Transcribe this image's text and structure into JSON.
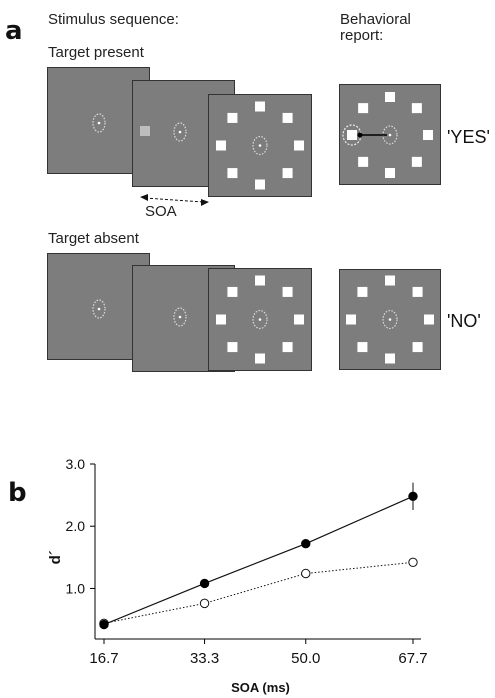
{
  "panel_a": {
    "letter": "a",
    "stimulus_header": "Stimulus sequence:",
    "report_header_line1": "Behavioral",
    "report_header_line2": "report:",
    "target_present_label": "Target present",
    "target_absent_label": "Target absent",
    "soa_label": "SOA",
    "response_yes": "'YES'",
    "response_no": "'NO'"
  },
  "panel_b": {
    "letter": "b"
  },
  "chart_data": {
    "type": "line",
    "title": "",
    "xlabel": "SOA (ms)",
    "ylabel": "d´",
    "x": [
      16.7,
      33.3,
      50.0,
      67.7
    ],
    "x_tick_labels": [
      "16.7",
      "33.3",
      "50.0",
      "67.7"
    ],
    "y_tick_values": [
      1.0,
      2.0,
      3.0
    ],
    "y_tick_labels": [
      "1.0",
      "2.0",
      "3.0"
    ],
    "xlim": [
      16.7,
      67.7
    ],
    "ylim": [
      0.3,
      3.0
    ],
    "grid": false,
    "legend": "none",
    "series": [
      {
        "marker": "filled-circle",
        "line": "solid",
        "values": [
          0.42,
          1.08,
          1.72,
          2.48
        ],
        "error": [
          0.05,
          0.05,
          0.07,
          0.22
        ]
      },
      {
        "marker": "open-circle",
        "line": "dotted",
        "values": [
          0.44,
          0.76,
          1.24,
          1.42
        ],
        "error": [
          0.05,
          0.04,
          0.05,
          0.07
        ]
      }
    ]
  }
}
